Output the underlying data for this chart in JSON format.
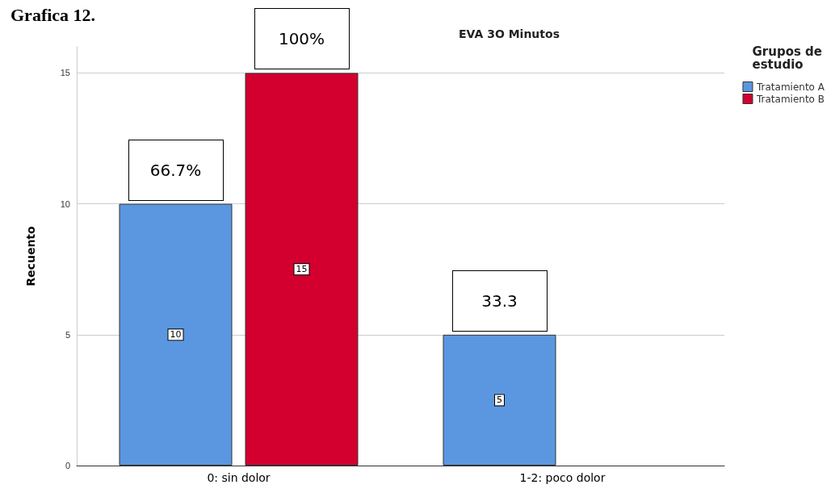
{
  "chart_data": {
    "type": "bar",
    "title": "Grafica 12.",
    "subtitle": "EVA 3O Minutos",
    "ylabel": "Recuento",
    "legend_title": "Grupos de estudio",
    "categories": [
      "0: sin dolor",
      "1-2: poco dolor"
    ],
    "series": [
      {
        "name": "Tratamiento A",
        "color": "#5b97e0",
        "values": [
          10,
          5
        ]
      },
      {
        "name": "Tratamiento B",
        "color": "#d3002f",
        "values": [
          15,
          null
        ]
      }
    ],
    "ylim": [
      0,
      16
    ],
    "yticks": [
      0,
      5,
      10,
      15
    ],
    "grid": "y",
    "legend": "top right",
    "data_labels": true,
    "annotations": [
      "100%",
      "66.7%",
      "33.3"
    ]
  }
}
